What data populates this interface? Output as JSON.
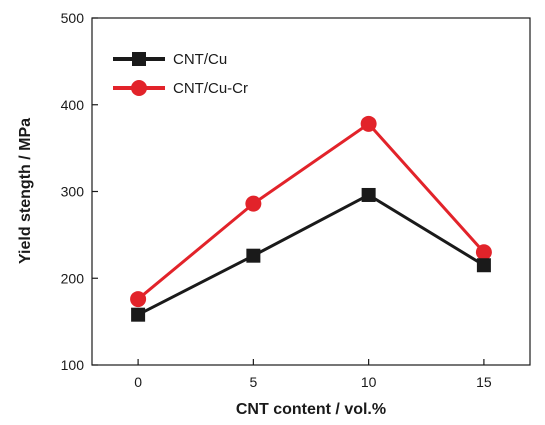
{
  "chart_data": {
    "type": "line",
    "xlabel": "CNT content / vol.%",
    "ylabel": "Yield stength / MPa",
    "x": [
      0,
      5,
      10,
      15
    ],
    "x_ticks": [
      "0",
      "5",
      "10",
      "15"
    ],
    "xlim": [
      -2,
      17
    ],
    "ylim": [
      100,
      500
    ],
    "y_ticks": [
      "100",
      "200",
      "300",
      "400",
      "500"
    ],
    "grid": false,
    "legend_position": "top-left",
    "series": [
      {
        "name": "CNT/Cu",
        "values": [
          158,
          226,
          296,
          215
        ],
        "color": "#1a1a1a",
        "marker": "square"
      },
      {
        "name": "CNT/Cu-Cr",
        "values": [
          176,
          286,
          378,
          230
        ],
        "color": "#e2232a",
        "marker": "circle"
      }
    ]
  }
}
